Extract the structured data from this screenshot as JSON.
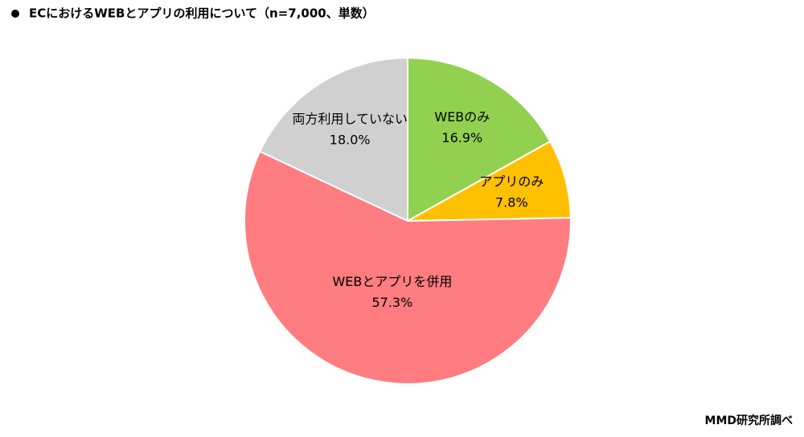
{
  "chart_data": {
    "type": "pie",
    "title": "ECにおけるWEBとアプリの利用について（n=7,000、単数）",
    "categories": [
      "WEBのみ",
      "アプリのみ",
      "WEBとアプリを併用",
      "両方利用していない"
    ],
    "values": [
      16.9,
      7.8,
      57.3,
      18.0
    ],
    "value_labels": [
      "16.9%",
      "7.8%",
      "57.3%",
      "18.0%"
    ],
    "colors": [
      "#92d050",
      "#ffc000",
      "#ff7c80",
      "#d0d0d0"
    ],
    "source": "MMD研究所調べ"
  }
}
